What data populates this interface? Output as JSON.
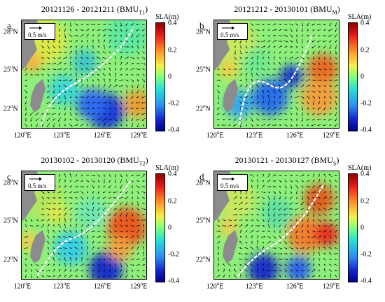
{
  "panels": [
    {
      "label": "a",
      "title_main": "20121126 - 20121211 (BMU",
      "title_sub": "T1",
      "title_end": ")"
    },
    {
      "label": "b",
      "title_main": "20121212 - 20130101 (BMU",
      "title_sub": "M",
      "title_end": ")"
    },
    {
      "label": "c",
      "title_main": "20130102 - 20130120 (BMU",
      "title_sub": "T2",
      "title_end": ")"
    },
    {
      "label": "d",
      "title_main": "20130121 - 20130127 (BMU",
      "title_sub": "S",
      "title_end": ")"
    }
  ],
  "axes": {
    "x_ticks": [
      {
        "deg": "120",
        "hemi": "E"
      },
      {
        "deg": "123",
        "hemi": "E"
      },
      {
        "deg": "126",
        "hemi": "E"
      },
      {
        "deg": "129",
        "hemi": "E"
      }
    ],
    "y_ticks": [
      {
        "deg": "28",
        "hemi": "N"
      },
      {
        "deg": "25",
        "hemi": "N"
      },
      {
        "deg": "22",
        "hemi": "N"
      }
    ],
    "lon_range": [
      120,
      129.5
    ],
    "lat_range": [
      22,
      29.5
    ]
  },
  "colorbar": {
    "title": "SLA(m)",
    "ticks": [
      "0.4",
      "0.2",
      "0",
      "-0.2",
      "-0.4"
    ],
    "range": [
      -0.4,
      0.4
    ]
  },
  "scale_label": "0.5 m/s",
  "degree_symbol": "o",
  "colors": {
    "land": "#8c8c8c",
    "track": "#ffffff",
    "arrow": "#000000"
  }
}
